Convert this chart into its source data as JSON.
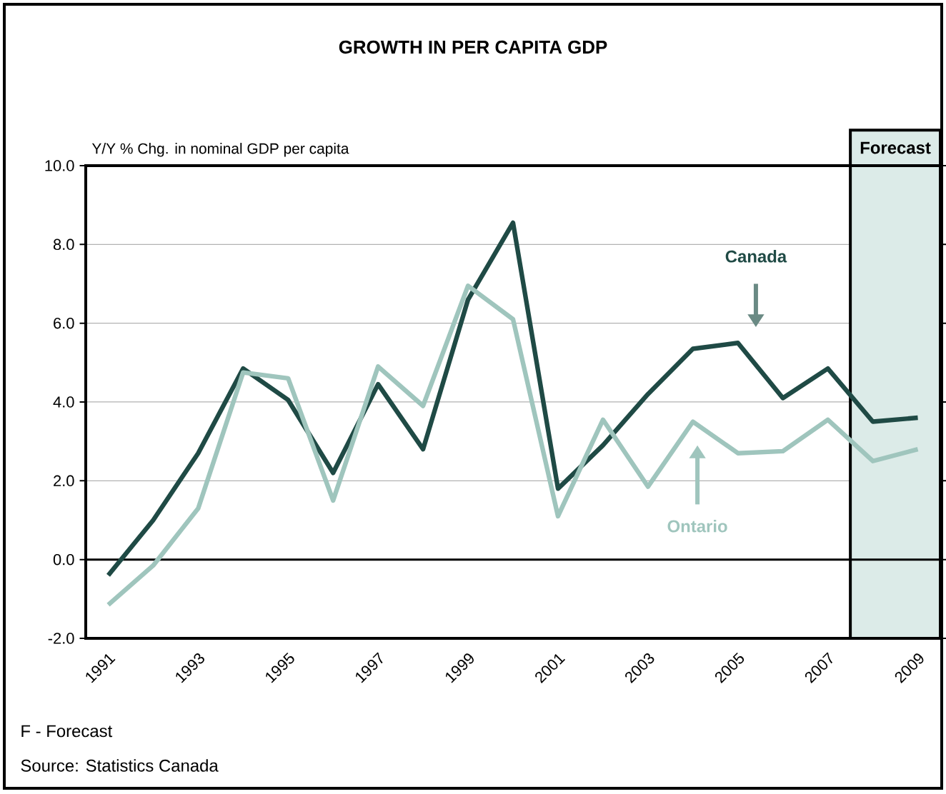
{
  "chart_data": {
    "type": "line",
    "title": "GROWTH IN PER CAPITA GDP",
    "ylabel": "Y/Y % Chg. in nominal GDP per capita",
    "x": [
      1991,
      1992,
      1993,
      1994,
      1995,
      1996,
      1997,
      1998,
      1999,
      2000,
      2001,
      2002,
      2003,
      2004,
      2005,
      2006,
      2007,
      2008,
      2009
    ],
    "series": [
      {
        "name": "Canada",
        "color": "#1f4a45",
        "values": [
          -0.4,
          1.0,
          2.7,
          4.85,
          4.05,
          2.2,
          4.45,
          2.8,
          6.6,
          8.55,
          1.8,
          2.9,
          4.2,
          5.35,
          5.5,
          4.1,
          4.85,
          3.5,
          3.6
        ]
      },
      {
        "name": "Ontario",
        "color": "#9fc5bd",
        "values": [
          -1.15,
          -0.15,
          1.3,
          4.75,
          4.6,
          1.5,
          4.9,
          3.9,
          6.95,
          6.1,
          1.1,
          3.55,
          1.85,
          3.5,
          2.7,
          2.75,
          3.55,
          2.5,
          2.8
        ]
      }
    ],
    "xlim": [
      1990.5,
      2009.5
    ],
    "xticks": [
      1991,
      1993,
      1995,
      1997,
      1999,
      2001,
      2003,
      2005,
      2007,
      2009
    ],
    "ylim": [
      -2,
      10
    ],
    "yticks": [
      {
        "value": -2,
        "label": "-2.0"
      },
      {
        "value": 0,
        "label": "0.0"
      },
      {
        "value": 2,
        "label": "2.0"
      },
      {
        "value": 4,
        "label": "4.0"
      },
      {
        "value": 6,
        "label": "6.0"
      },
      {
        "value": 8,
        "label": "8.0"
      },
      {
        "value": 10,
        "label": "10.0"
      }
    ],
    "grid": "y",
    "marker": "none",
    "line_style": "solid",
    "ref_lines": [
      {
        "axis": "y",
        "value": 0,
        "color": "#000000"
      }
    ],
    "bands": [
      {
        "axis": "x",
        "from": 2007.5,
        "to": 2009.5,
        "label": "Forecast",
        "color": "#dcebe8"
      }
    ],
    "annotations": [
      "F - Forecast",
      "Source: Statistics Canada"
    ]
  }
}
